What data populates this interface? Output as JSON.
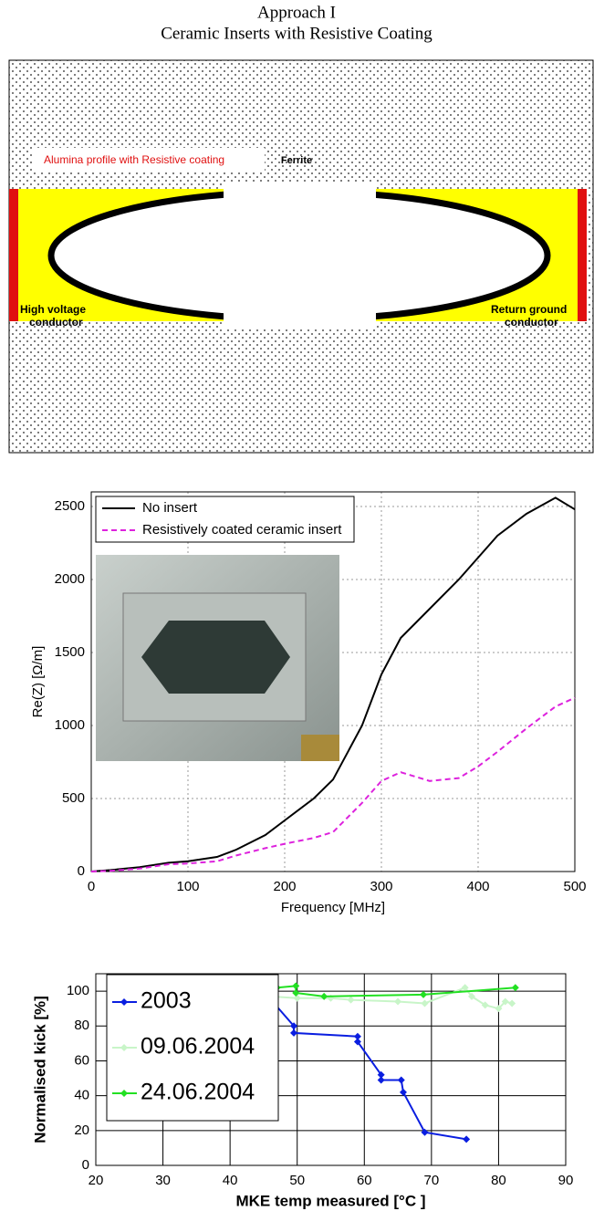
{
  "header": {
    "title": [
      "Approach I",
      "Ceramic Inserts with Resistive Coating"
    ]
  },
  "diagram": {
    "ferrite": "Ferrite",
    "alumina": "Alumina profile with Resistive coating",
    "left_conductor": [
      "High voltage",
      "conductor"
    ],
    "right_conductor": [
      "Return ground",
      "conductor"
    ]
  },
  "chart_data": [
    {
      "type": "line",
      "xlabel": "Frequency [MHz]",
      "ylabel": "Re(Z) [Ω/m]",
      "x": [
        0,
        20,
        50,
        80,
        100,
        130,
        150,
        180,
        200,
        230,
        250,
        280,
        300,
        320,
        350,
        380,
        400,
        420,
        450,
        480,
        500
      ],
      "series": [
        {
          "name": "No insert",
          "color": "#000000",
          "dash": false,
          "values": [
            0,
            10,
            30,
            60,
            70,
            100,
            150,
            250,
            350,
            500,
            630,
            1000,
            1350,
            1600,
            1800,
            2000,
            2150,
            2300,
            2450,
            2560,
            2480
          ]
        },
        {
          "name": "Resistively coated ceramic insert",
          "color": "#dd22dd",
          "dash": true,
          "values": [
            0,
            5,
            20,
            50,
            55,
            70,
            110,
            160,
            190,
            230,
            270,
            470,
            620,
            680,
            620,
            640,
            720,
            820,
            980,
            1130,
            1190
          ]
        }
      ],
      "xlim": [
        0,
        500
      ],
      "xticks": [
        0,
        100,
        200,
        300,
        400,
        500
      ],
      "ylim": [
        0,
        2600
      ],
      "yticks": [
        0,
        500,
        1000,
        1500,
        2000,
        2500
      ],
      "grid": true,
      "legend": "upper left"
    },
    {
      "type": "scatter",
      "xlabel": "MKE temp measured [°C ]",
      "ylabel": "Normalised kick [%]",
      "marker": "diamond",
      "series": [
        {
          "name": "2003",
          "color": "#0a1ee0",
          "x": [
            29.5,
            31.8,
            34.2,
            37,
            37,
            40.8,
            40.8,
            45.2,
            49.5,
            49.5,
            59,
            59,
            62.5,
            62.5,
            65.5,
            65.8,
            69,
            75.2
          ],
          "values": [
            100,
            102,
            101,
            98,
            100,
            100,
            99,
            99,
            80,
            76,
            74,
            71,
            52,
            49,
            49,
            42,
            19,
            15
          ]
        },
        {
          "name": "09.06.2004",
          "color": "#c8f5c8",
          "x": [
            37,
            44,
            46,
            50,
            55,
            58,
            65,
            69,
            75,
            76,
            78,
            80,
            81,
            82
          ],
          "values": [
            100,
            100,
            97,
            96,
            96,
            95,
            94,
            93,
            102,
            97,
            92,
            90,
            94,
            93
          ]
        },
        {
          "name": "24.06.2004",
          "color": "#22e022",
          "x": [
            44,
            47,
            49.8,
            49.8,
            54,
            68.8,
            82.5
          ],
          "values": [
            100,
            102,
            103,
            99,
            97,
            98,
            102
          ]
        }
      ],
      "xlim": [
        20,
        90
      ],
      "xticks": [
        20,
        30,
        40,
        50,
        60,
        70,
        80,
        90
      ],
      "ylim": [
        0,
        110
      ],
      "yticks": [
        0,
        20,
        40,
        60,
        80,
        100
      ],
      "grid": true,
      "legend": "center left"
    }
  ]
}
